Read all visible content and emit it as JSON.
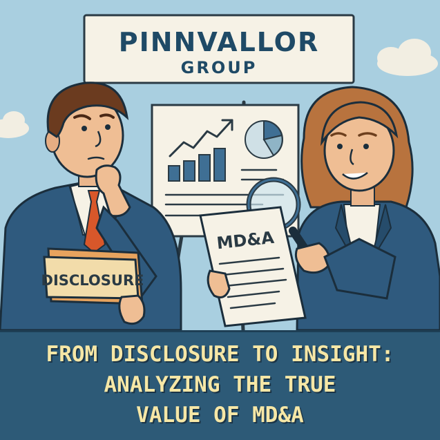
{
  "sign": {
    "name": "PINNVALLOR",
    "sub": "GROUP"
  },
  "folder_label": "DISCLOSURE",
  "document_label": "MD&A",
  "headline": {
    "line1": "FROM DISCLOSURE TO INSIGHT:",
    "line2": "ANALYZING THE TRUE",
    "line3": "VALUE OF MD&A"
  },
  "colors": {
    "sky": "#a9cfe0",
    "banner": "#2d5a77",
    "banner_text": "#f6e7a6",
    "suit": "#2f5a7e",
    "tie": "#d8572a",
    "chart_bars": "#3f6f94"
  },
  "icons": [
    "cloud-icon",
    "magnifying-glass-icon",
    "trend-arrow-icon",
    "pie-chart-icon"
  ]
}
